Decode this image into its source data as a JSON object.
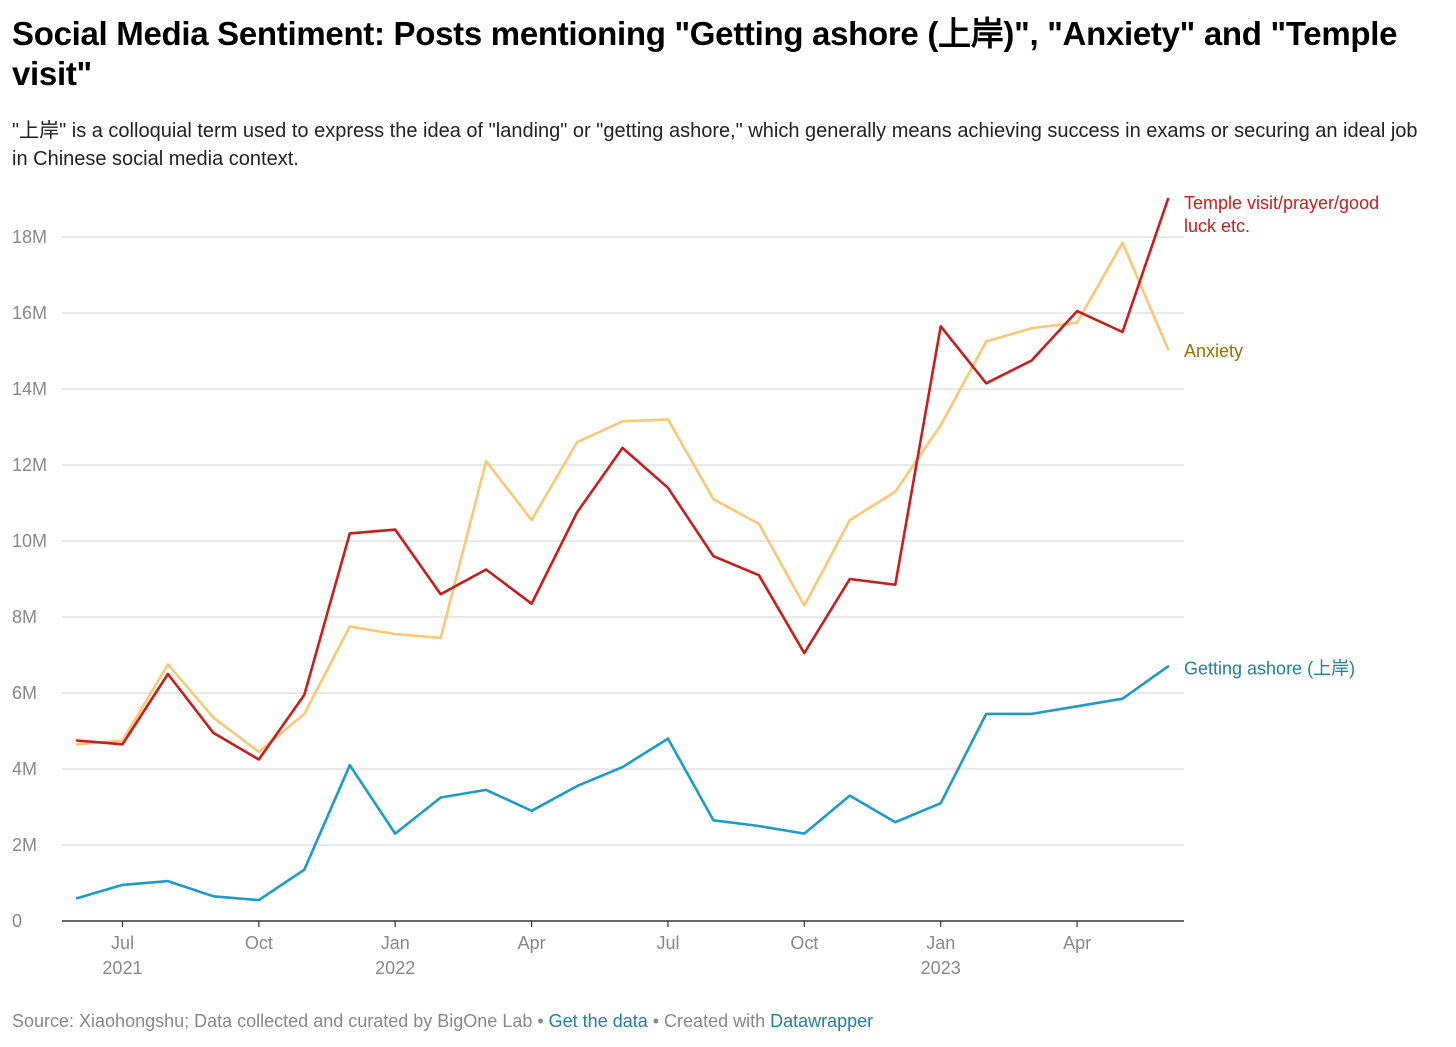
{
  "title": "Social Media Sentiment: Posts mentioning \"Getting ashore (上岸)\", \"Anxiety\" and \"Temple visit\"",
  "subtitle": "\"上岸\" is a colloquial term used to express the idea of \"landing\" or \"getting ashore,\" which generally means achieving success in exams or securing an ideal job in Chinese social media context.",
  "footer": {
    "source": "Source: Xiaohongshu; Data collected and curated by BigOne Lab",
    "sep1": " • ",
    "get_data": "Get the data",
    "sep2": " • Created with ",
    "datawrapper": "Datawrapper"
  },
  "chart_data": {
    "type": "line",
    "x": [
      "2021-06",
      "2021-07",
      "2021-08",
      "2021-09",
      "2021-10",
      "2021-11",
      "2021-12",
      "2022-01",
      "2022-02",
      "2022-03",
      "2022-04",
      "2022-05",
      "2022-06",
      "2022-07",
      "2022-08",
      "2022-09",
      "2022-10",
      "2022-11",
      "2022-12",
      "2023-01",
      "2023-02",
      "2023-03",
      "2023-04",
      "2023-05",
      "2023-06"
    ],
    "x_ticks": [
      {
        "x": "2021-07",
        "label": "Jul",
        "year": "2021"
      },
      {
        "x": "2021-10",
        "label": "Oct",
        "year": ""
      },
      {
        "x": "2022-01",
        "label": "Jan",
        "year": "2022"
      },
      {
        "x": "2022-04",
        "label": "Apr",
        "year": ""
      },
      {
        "x": "2022-07",
        "label": "Jul",
        "year": ""
      },
      {
        "x": "2022-10",
        "label": "Oct",
        "year": ""
      },
      {
        "x": "2023-01",
        "label": "Jan",
        "year": "2023"
      },
      {
        "x": "2023-04",
        "label": "Apr",
        "year": ""
      }
    ],
    "ylim": [
      0,
      18000000
    ],
    "y_ticks": [
      {
        "value": 0,
        "label": "0"
      },
      {
        "value": 2000000,
        "label": "2M"
      },
      {
        "value": 4000000,
        "label": "4M"
      },
      {
        "value": 6000000,
        "label": "6M"
      },
      {
        "value": 8000000,
        "label": "8M"
      },
      {
        "value": 10000000,
        "label": "10M"
      },
      {
        "value": 12000000,
        "label": "12M"
      },
      {
        "value": 14000000,
        "label": "14M"
      },
      {
        "value": 16000000,
        "label": "16M"
      },
      {
        "value": 18000000,
        "label": "18M"
      }
    ],
    "grid": true,
    "series": [
      {
        "name": "Anxiety",
        "label": "Anxiety",
        "color": "#fbc875",
        "label_color": "#9a6e00",
        "values": [
          4650000,
          4750000,
          6750000,
          5350000,
          4450000,
          5450000,
          7750000,
          7550000,
          7450000,
          12100000,
          10550000,
          12600000,
          13150000,
          13200000,
          11100000,
          10450000,
          8300000,
          10550000,
          11300000,
          13050000,
          15250000,
          15600000,
          15750000,
          17850000,
          15050000
        ]
      },
      {
        "name": "Temple visit/prayer/good luck etc.",
        "label": "Temple visit/prayer/good luck etc.",
        "label_lines": [
          "Temple visit/prayer/good",
          "luck etc."
        ],
        "color": "#c71e1d",
        "label_color": "#c71e1d",
        "values": [
          4750000,
          4650000,
          6500000,
          4950000,
          4250000,
          5950000,
          10200000,
          10300000,
          8600000,
          9250000,
          8350000,
          10750000,
          12450000,
          11400000,
          9600000,
          9100000,
          7050000,
          9000000,
          8850000,
          15650000,
          14150000,
          14750000,
          16050000,
          15500000,
          19000000
        ]
      },
      {
        "name": "Getting ashore (上岸)",
        "label": "Getting ashore (上岸)",
        "color": "#1d9bc8",
        "label_color": "#1d81a2",
        "values": [
          600000,
          950000,
          1050000,
          650000,
          550000,
          1350000,
          4100000,
          2300000,
          3250000,
          3450000,
          2900000,
          3550000,
          4050000,
          4800000,
          2650000,
          2500000,
          2300000,
          3300000,
          2600000,
          3100000,
          5450000,
          5450000,
          5650000,
          5850000,
          6700000
        ]
      }
    ]
  }
}
